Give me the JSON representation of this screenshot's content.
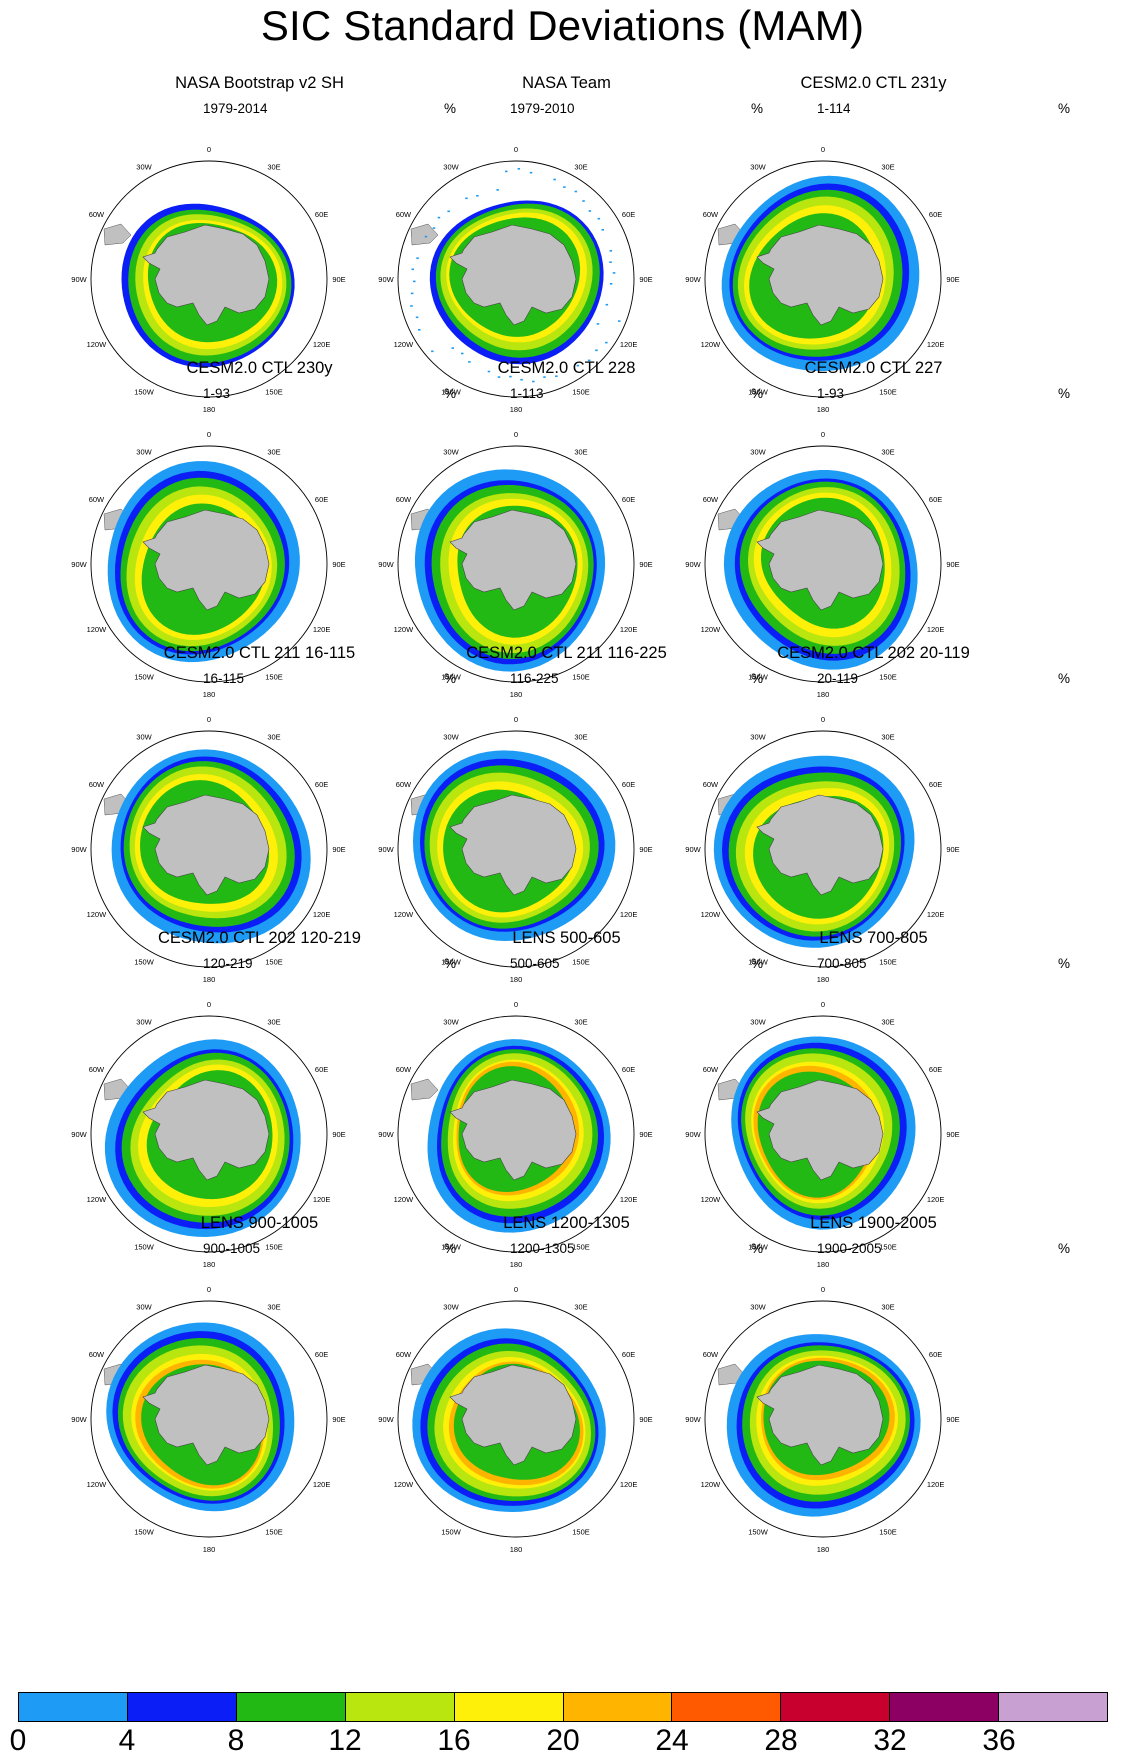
{
  "title": "SIC Standard Deviations (MAM)",
  "unit": "%",
  "longitude_labels": [
    "0",
    "30E",
    "60E",
    "90E",
    "120E",
    "150E",
    "180",
    "150W",
    "120W",
    "90W",
    "60W",
    "30W"
  ],
  "panels": [
    {
      "title": "NASA Bootstrap v2 SH",
      "period": "1979-2014",
      "style": "bootstrap"
    },
    {
      "title": "NASA Team",
      "period": "1979-2010",
      "style": "team"
    },
    {
      "title": "CESM2.0 CTL 231y",
      "period": "1-114",
      "style": "model"
    },
    {
      "title": "CESM2.0 CTL 230y",
      "period": "1-93",
      "style": "model"
    },
    {
      "title": "CESM2.0 CTL 228",
      "period": "1-113",
      "style": "model"
    },
    {
      "title": "CESM2.0 CTL 227",
      "period": "1-93",
      "style": "model"
    },
    {
      "title": "CESM2.0 CTL 211 16-115",
      "period": "16-115",
      "style": "model"
    },
    {
      "title": "CESM2.0 CTL 211 116-225",
      "period": "116-225",
      "style": "model"
    },
    {
      "title": "CESM2.0 CTL 202 20-119",
      "period": "20-119",
      "style": "model"
    },
    {
      "title": "CESM2.0 CTL 202 120-219",
      "period": "120-219",
      "style": "model"
    },
    {
      "title": "LENS 500-605",
      "period": "500-605",
      "style": "lens"
    },
    {
      "title": "LENS 700-805",
      "period": "700-805",
      "style": "lens"
    },
    {
      "title": "LENS 900-1005",
      "period": "900-1005",
      "style": "lens"
    },
    {
      "title": "LENS 1200-1305",
      "period": "1200-1305",
      "style": "lens"
    },
    {
      "title": "LENS 1900-2005",
      "period": "1900-2005",
      "style": "lens"
    }
  ],
  "colorbar": {
    "colors": [
      "#1e9bf5",
      "#0a1ef5",
      "#23b914",
      "#b9e60f",
      "#fff00a",
      "#ffb400",
      "#ff5a00",
      "#c8002d",
      "#8c0064",
      "#c8a0d2"
    ],
    "labels": [
      "0",
      "4",
      "8",
      "12",
      "16",
      "20",
      "24",
      "28",
      "32",
      "36"
    ]
  },
  "land_color": "#c0c0c0"
}
